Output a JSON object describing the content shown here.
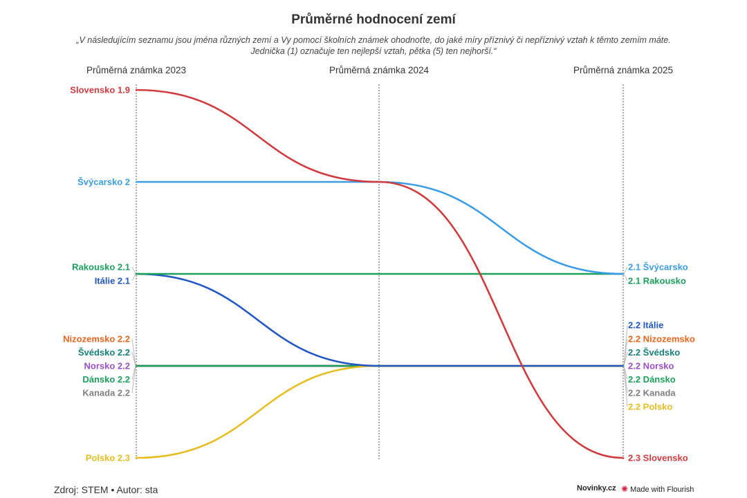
{
  "header": {
    "title": "Průměrné hodnocení zemí",
    "subtitle_line1": "„V následujícím seznamu jsou jména různých zemí a Vy pomocí školních známek ohodnoťte, do jaké míry příznivý či nepříznivý vztah k těmto zemím máte.",
    "subtitle_line2": "Jednička (1) označuje ten nejlepší vztah, pětka (5) ten nejhorší.“"
  },
  "chart_data": {
    "type": "line",
    "x": [
      "Průměrná známka 2023",
      "Průměrná známka 2024",
      "Průměrná známka 2025"
    ],
    "ylim": [
      1.9,
      2.3
    ],
    "y_reversed": true,
    "grid": "vertical dotted lines at each column",
    "series": [
      {
        "name": "Slovensko",
        "color": "#d13b3f",
        "values": [
          1.9,
          2.0,
          2.3
        ]
      },
      {
        "name": "Švýcarsko",
        "color": "#3a9de6",
        "values": [
          2.0,
          2.0,
          2.1
        ]
      },
      {
        "name": "Rakousko",
        "color": "#1ba05c",
        "values": [
          2.1,
          2.1,
          2.1
        ]
      },
      {
        "name": "Itálie",
        "color": "#2158c4",
        "values": [
          2.1,
          2.2,
          2.2
        ]
      },
      {
        "name": "Nizozemsko",
        "color": "#e8661e",
        "values": [
          2.2,
          2.2,
          2.2
        ]
      },
      {
        "name": "Švédsko",
        "color": "#157f7b",
        "values": [
          2.2,
          2.2,
          2.2
        ]
      },
      {
        "name": "Norsko",
        "color": "#9c4fc4",
        "values": [
          2.2,
          2.2,
          2.2
        ]
      },
      {
        "name": "Dánsko",
        "color": "#1ba05c",
        "values": [
          2.2,
          2.2,
          2.2
        ]
      },
      {
        "name": "Kanada",
        "color": "#808080",
        "values": [
          2.2,
          2.2,
          2.2
        ]
      },
      {
        "name": "Polsko",
        "color": "#e6be21",
        "values": [
          2.3,
          2.2,
          2.2
        ]
      }
    ],
    "left_labels": [
      {
        "text": "Slovensko 1.9",
        "color": "#d13b3f",
        "value": 1.9
      },
      {
        "text": "Švýcarsko 2",
        "color": "#3a9de6",
        "value": 2.0
      },
      {
        "text": "Rakousko 2.1",
        "color": "#1ba05c",
        "value": 2.1
      },
      {
        "text": "Itálie 2.1",
        "color": "#2158c4",
        "value": 2.1
      },
      {
        "text": "Nizozemsko 2.2",
        "color": "#e8661e",
        "value": 2.2
      },
      {
        "text": "Švédsko 2.2",
        "color": "#157f7b",
        "value": 2.2
      },
      {
        "text": "Norsko 2.2",
        "color": "#9c4fc4",
        "value": 2.2
      },
      {
        "text": "Dánsko 2.2",
        "color": "#1ba05c",
        "value": 2.2
      },
      {
        "text": "Kanada 2.2",
        "color": "#808080",
        "value": 2.2
      },
      {
        "text": "Polsko 2.3",
        "color": "#e6be21",
        "value": 2.3
      }
    ],
    "right_labels": [
      {
        "text": "2.1 Švýcarsko",
        "color": "#3a9de6",
        "value": 2.1
      },
      {
        "text": "2.1 Rakousko",
        "color": "#1ba05c",
        "value": 2.1
      },
      {
        "text": "2.2 Itálie",
        "color": "#2158c4",
        "value": 2.2
      },
      {
        "text": "2.2 Nizozemsko",
        "color": "#e8661e",
        "value": 2.2
      },
      {
        "text": "2.2 Švédsko",
        "color": "#157f7b",
        "value": 2.2
      },
      {
        "text": "2.2 Norsko",
        "color": "#9c4fc4",
        "value": 2.2
      },
      {
        "text": "2.2 Dánsko",
        "color": "#1ba05c",
        "value": 2.2
      },
      {
        "text": "2.2 Kanada",
        "color": "#808080",
        "value": 2.2
      },
      {
        "text": "2.2 Polsko",
        "color": "#e6be21",
        "value": 2.2
      },
      {
        "text": "2.3 Slovensko",
        "color": "#d13b3f",
        "value": 2.3
      }
    ]
  },
  "footer": {
    "source": "Zdroj: STEM • Autor: sta",
    "brand": "Novinky.cz",
    "flourish_icon": "flourish-logo-icon",
    "flourish_label": "Made with Flourish"
  }
}
